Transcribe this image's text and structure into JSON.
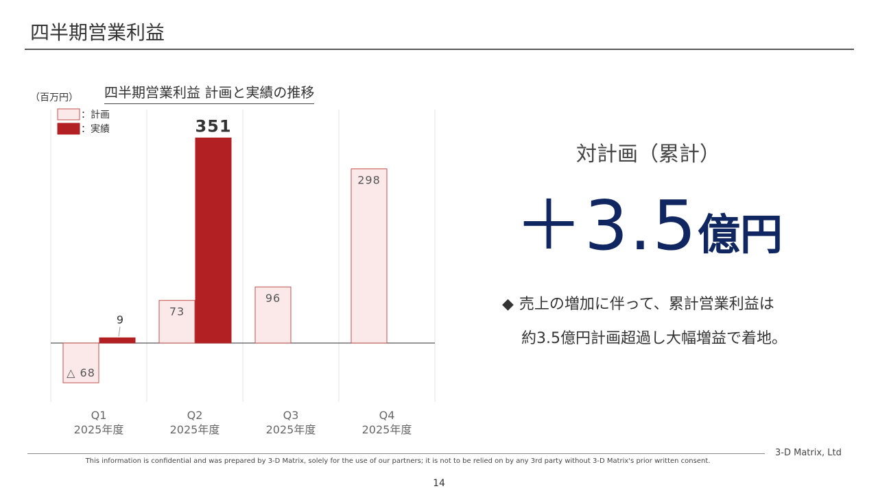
{
  "header": {
    "title": "四半期営業利益"
  },
  "chart_data": {
    "type": "bar",
    "title": "四半期営業利益 計画と実績の推移",
    "unit_label": "（百万円）",
    "categories": [
      "Q1",
      "Q2",
      "Q3",
      "Q4"
    ],
    "category_sublabel": "2025年度",
    "series": [
      {
        "name": "：計画",
        "values": [
          -68,
          73,
          96,
          298
        ],
        "fill": "#fbe9e9",
        "stroke": "#c0504d"
      },
      {
        "name": "：実績",
        "values": [
          9,
          351,
          null,
          null
        ],
        "fill": "#b22024",
        "stroke": "#b22024"
      }
    ],
    "data_labels": {
      "plan": [
        "△ 68",
        "73",
        "96",
        "298"
      ],
      "actual": [
        "9",
        "351",
        "",
        ""
      ]
    },
    "ylim": [
      -68,
      351
    ],
    "legend_position": "top-left",
    "grid": "vertical-category-separators"
  },
  "summary": {
    "label": "対計画（累計）",
    "value": "＋3.5",
    "unit": "億円"
  },
  "bullet": {
    "icon": "diamond-bullet",
    "line1": "売上の増加に伴って、累計営業利益は",
    "line2": "約3.5億円計画超過し大幅増益で着地。"
  },
  "footer": {
    "company": "3-D Matrix, Ltd",
    "disclaimer": "This information is confidential and was prepared by 3-D Matrix, solely for the use of our partners; it is not to be relied on by any 3rd party without 3-D Matrix's prior written consent.",
    "page": "14"
  }
}
